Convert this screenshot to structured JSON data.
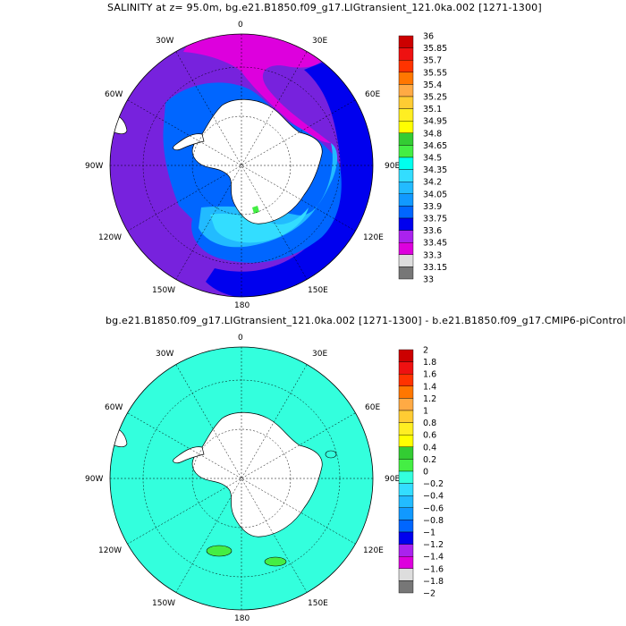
{
  "panel1": {
    "title": "SALINITY at z=  95.0m, bg.e21.B1850.f09_g17.LIGtransient_121.0ka.002 [1271-1300]",
    "longitude_labels": [
      "0",
      "30E",
      "60E",
      "90E",
      "120E",
      "150E",
      "180",
      "150W",
      "120W",
      "90W",
      "60W",
      "30W"
    ],
    "colorbar": {
      "labels": [
        "36",
        "35.85",
        "35.7",
        "35.55",
        "35.4",
        "35.25",
        "35.1",
        "34.95",
        "34.8",
        "34.65",
        "34.5",
        "34.35",
        "34.2",
        "34.05",
        "33.9",
        "33.75",
        "33.6",
        "33.45",
        "33.3",
        "33.15",
        "33"
      ],
      "colors": [
        "#cc0000",
        "#ee1111",
        "#ff3300",
        "#ff7700",
        "#ff9933",
        "#ffaa44",
        "#ffcc33",
        "#ffee22",
        "#ffff00",
        "#33cc33",
        "#44ee44",
        "#33eecc",
        "#00ffee",
        "#33ddff",
        "#22bbff",
        "#1199ff",
        "#0066ff",
        "#0000ee",
        "#7722dd",
        "#aa22ee",
        "#dd00dd",
        "#dddddd",
        "#777777"
      ]
    }
  },
  "panel2": {
    "title": "bg.e21.B1850.f09_g17.LIGtransient_121.0ka.002 [1271-1300] - b.e21.B1850.f09_g17.CMIP6-piControl",
    "longitude_labels": [
      "0",
      "30E",
      "60E",
      "90E",
      "120E",
      "150E",
      "180",
      "150W",
      "120W",
      "90W",
      "60W",
      "30W"
    ],
    "colorbar": {
      "labels": [
        "2",
        "1.8",
        "1.6",
        "1.4",
        "1.2",
        "1",
        "0.8",
        "0.6",
        "0.4",
        "0.2",
        "0",
        "−0.2",
        "−0.4",
        "−0.6",
        "−0.8",
        "−1",
        "−1.2",
        "−1.4",
        "−1.6",
        "−1.8",
        "−2"
      ],
      "colors": [
        "#cc0000",
        "#ee1111",
        "#ff3300",
        "#ff7700",
        "#ff9933",
        "#ffaa44",
        "#ffcc33",
        "#ffee22",
        "#ffff00",
        "#33cc33",
        "#44ee44",
        "#33ffdd",
        "#33ffdd",
        "#33ddff",
        "#22bbff",
        "#1199ff",
        "#0066ff",
        "#0000ee",
        "#7722dd",
        "#aa22ee",
        "#dd00dd",
        "#dddddd",
        "#777777"
      ]
    }
  }
}
